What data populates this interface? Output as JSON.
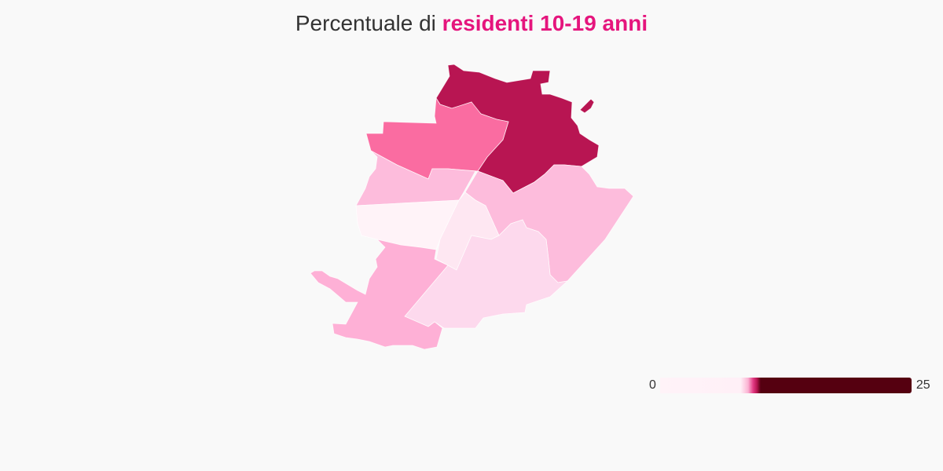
{
  "title": {
    "prefix": "Percentuale di ",
    "highlight": "residenti 10-19 anni",
    "highlight_color": "#e5157d"
  },
  "map": {
    "areas": [
      {
        "id": "north",
        "color": "#b81552"
      },
      {
        "id": "north-west",
        "color": "#fa6ca1"
      },
      {
        "id": "west",
        "color": "#fdbcdc"
      },
      {
        "id": "east",
        "color": "#fdbcdc"
      },
      {
        "id": "central-west",
        "color": "#fff3f8"
      },
      {
        "id": "central",
        "color": "#fee7f2"
      },
      {
        "id": "south-east",
        "color": "#fdd9ed"
      },
      {
        "id": "south-west",
        "color": "#feb0d6"
      }
    ]
  },
  "legend": {
    "min": "0",
    "max": "25",
    "low_color": "#fff3f8",
    "high_color": "#550010"
  }
}
